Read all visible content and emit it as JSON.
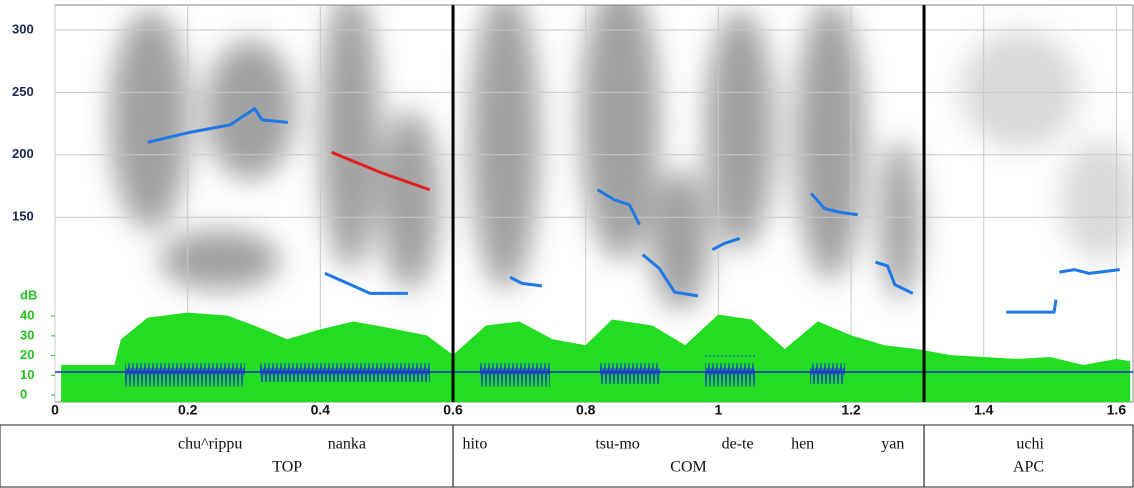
{
  "chart_data": {
    "type": "line",
    "xlim": [
      0,
      1.625
    ],
    "xticks": [
      0,
      0.2,
      0.4,
      0.6,
      0.8,
      1,
      1.2,
      1.4,
      1.6
    ],
    "ylim": [
      2,
      320
    ],
    "yticks": [
      150,
      200,
      250,
      300
    ],
    "y2label": "dB",
    "y2lim": [
      -3.5,
      197.5
    ],
    "y2ticks": [
      0,
      10,
      20,
      30,
      40
    ],
    "grid": true,
    "series": [
      {
        "color": "#22dd22",
        "fill": true,
        "axis": "y2",
        "x": [
          0.01,
          0.09,
          0.1,
          0.14,
          0.2,
          0.26,
          0.3,
          0.35,
          0.4,
          0.45,
          0.5,
          0.56,
          0.6,
          0.65,
          0.7,
          0.75,
          0.8,
          0.84,
          0.9,
          0.95,
          1.0,
          1.05,
          1.1,
          1.15,
          1.2,
          1.25,
          1.3,
          1.35,
          1.4,
          1.45,
          1.5,
          1.55,
          1.6,
          1.62
        ],
        "values": [
          15,
          15,
          28,
          39,
          41.5,
          40,
          35,
          28,
          33,
          37,
          34,
          30,
          20,
          35,
          37,
          28,
          25,
          38,
          35,
          25,
          40.5,
          38,
          23,
          37,
          30,
          25,
          23,
          20,
          19,
          18,
          19,
          15,
          18,
          17
        ]
      },
      {
        "color": "#1e78e6",
        "x": [
          0.14,
          0.203,
          0.264,
          0.301,
          0.312,
          0.351
        ],
        "values": [
          210,
          218,
          224,
          237,
          228,
          226
        ]
      },
      {
        "color": "#e02020",
        "x": [
          0.417,
          0.49,
          0.565
        ],
        "values": [
          202,
          186,
          172
        ]
      },
      {
        "color": "#1e78e6",
        "x": [
          0.407,
          0.437,
          0.475,
          0.532
        ],
        "values": [
          105,
          98,
          89,
          89
        ]
      },
      {
        "color": "#1e78e6",
        "x": [
          0.686,
          0.704,
          0.734
        ],
        "values": [
          102,
          97,
          95
        ]
      },
      {
        "color": "#1e78e6",
        "x": [
          0.818,
          0.843,
          0.866,
          0.881
        ],
        "values": [
          172,
          164,
          160,
          144
        ]
      },
      {
        "color": "#1e78e6",
        "x": [
          0.886,
          0.911,
          0.934,
          0.969
        ],
        "values": [
          120,
          109,
          90,
          87
        ]
      },
      {
        "color": "#1e78e6",
        "x": [
          0.991,
          1.009,
          1.032
        ],
        "values": [
          124,
          129,
          133
        ]
      },
      {
        "color": "#1e78e6",
        "x": [
          1.14,
          1.16,
          1.183,
          1.21
        ],
        "values": [
          169,
          157,
          154,
          152
        ]
      },
      {
        "color": "#1e78e6",
        "x": [
          1.237,
          1.255,
          1.266,
          1.293
        ],
        "values": [
          114,
          111,
          96,
          89
        ]
      },
      {
        "color": "#1e78e6",
        "x": [
          1.434,
          1.506,
          1.509
        ],
        "values": [
          74,
          74,
          84
        ]
      },
      {
        "color": "#1e78e6",
        "x": [
          1.514,
          1.537,
          1.559,
          1.605
        ],
        "values": [
          106,
          108,
          105,
          108
        ]
      }
    ],
    "tier": {
      "intervals": [
        {
          "start": 0.1,
          "end": 0.6,
          "label": "TOP"
        },
        {
          "start": 0.6,
          "end": 1.31,
          "label": "COM"
        },
        {
          "start": 1.31,
          "end": 1.625,
          "label": "APC"
        }
      ],
      "words": [
        {
          "text": "chu^rippu",
          "time": 0.234
        },
        {
          "text": "nanka",
          "time": 0.44
        },
        {
          "text": "hito",
          "time": 0.633
        },
        {
          "text": "tsu-mo",
          "time": 0.848
        },
        {
          "text": "de-te",
          "time": 1.029
        },
        {
          "text": "hen",
          "time": 1.127
        },
        {
          "text": "yan",
          "time": 1.263
        },
        {
          "text": "uchi",
          "time": 1.47
        }
      ]
    }
  }
}
